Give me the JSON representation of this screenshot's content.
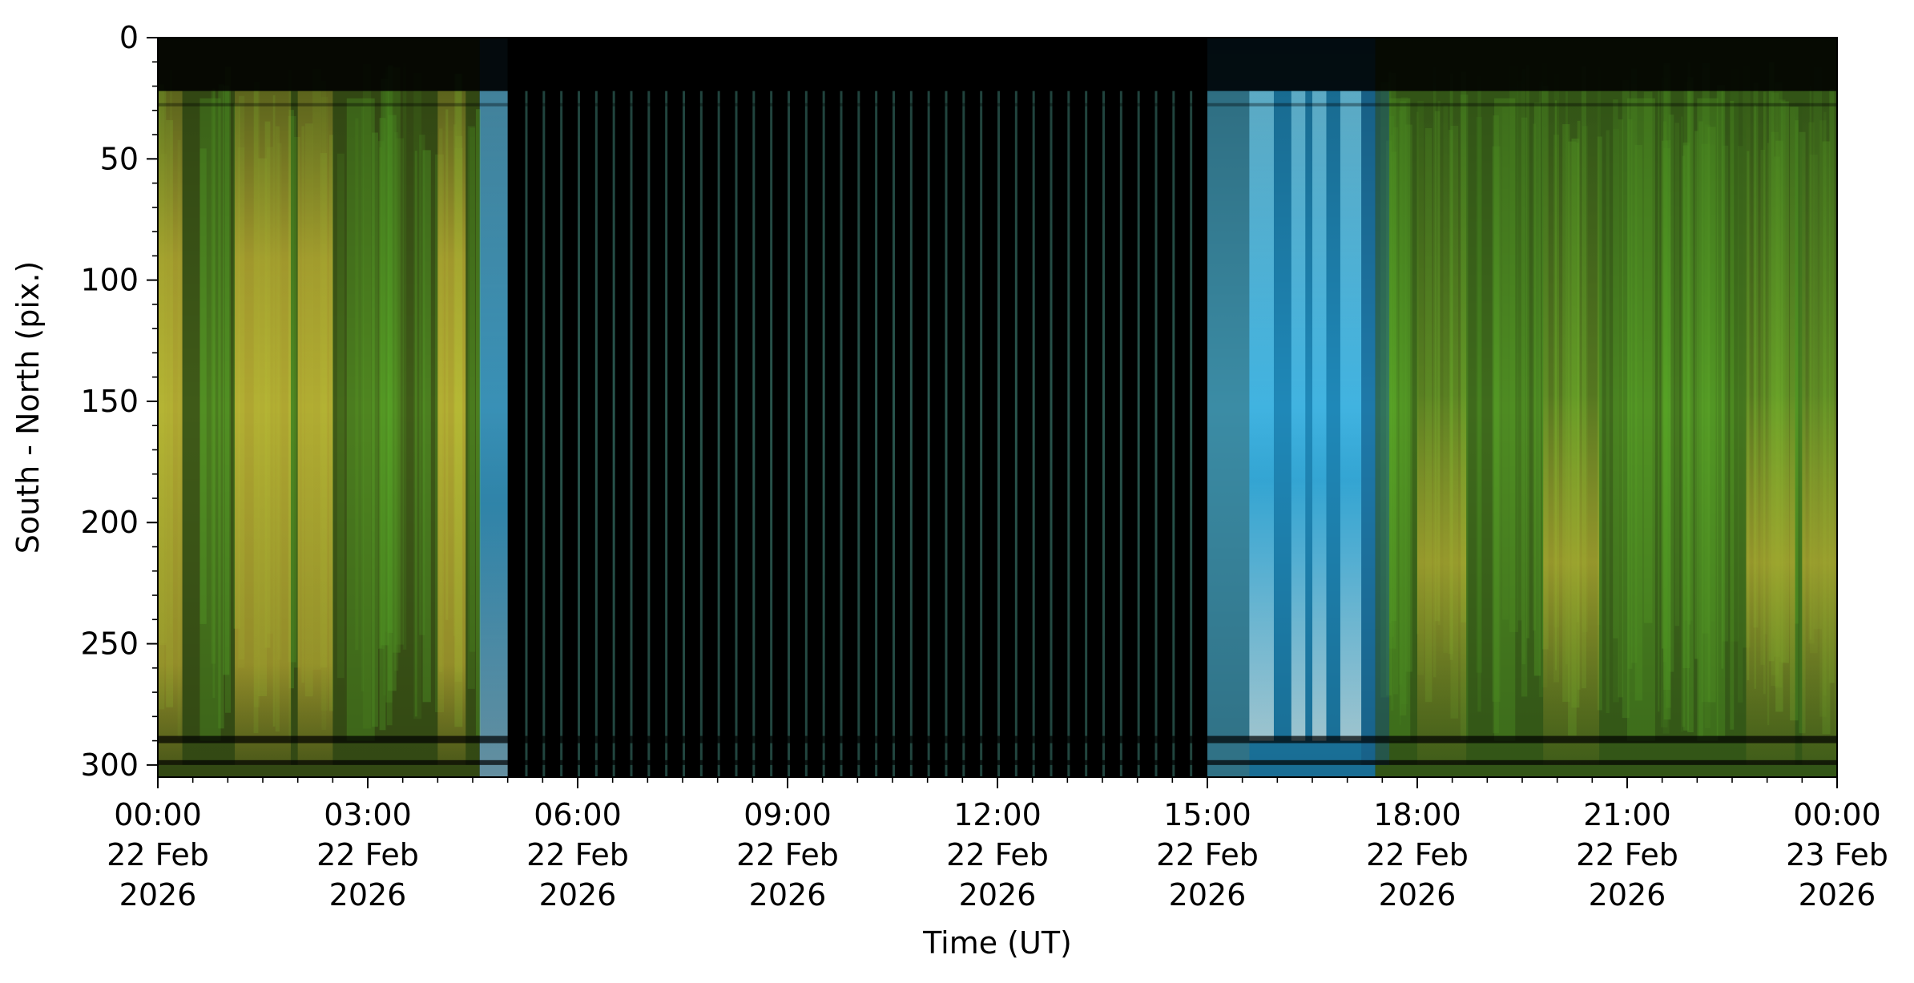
{
  "chart_data": {
    "type": "heatmap",
    "title": "",
    "xlabel": "Time (UT)",
    "ylabel": "South - North (pix.)",
    "y_inverted": true,
    "ylim": [
      0,
      305
    ],
    "y_ticks": [
      0,
      50,
      100,
      150,
      200,
      250,
      300
    ],
    "y_tick_labels": [
      "0",
      "50",
      "100",
      "150",
      "200",
      "250",
      "300"
    ],
    "xlim_hours": [
      0,
      24
    ],
    "x_ticks_hours": [
      0,
      3,
      6,
      9,
      12,
      15,
      18,
      21,
      24
    ],
    "x_tick_labels": [
      [
        "00:00",
        "22 Feb",
        "2026"
      ],
      [
        "03:00",
        "22 Feb",
        "2026"
      ],
      [
        "06:00",
        "22 Feb",
        "2026"
      ],
      [
        "09:00",
        "22 Feb",
        "2026"
      ],
      [
        "12:00",
        "22 Feb",
        "2026"
      ],
      [
        "15:00",
        "22 Feb",
        "2026"
      ],
      [
        "18:00",
        "22 Feb",
        "2026"
      ],
      [
        "21:00",
        "22 Feb",
        "2026"
      ],
      [
        "00:00",
        "23 Feb",
        "2026"
      ]
    ],
    "segments": [
      {
        "start_hour": 0.0,
        "end_hour": 4.6,
        "color": "#3f5a18"
      },
      {
        "start_hour": 4.6,
        "end_hour": 5.0,
        "color": "#2a6a8a"
      },
      {
        "start_hour": 5.0,
        "end_hour": 15.0,
        "color": "#000000"
      },
      {
        "start_hour": 15.0,
        "end_hour": 17.4,
        "color": "#1f88b8"
      },
      {
        "start_hour": 17.4,
        "end_hour": 24.0,
        "color": "#3f6a1c"
      }
    ],
    "yellow_bands_hours": [
      [
        0.0,
        0.35
      ],
      [
        1.1,
        1.9
      ],
      [
        2.0,
        2.5
      ],
      [
        4.0,
        4.4
      ],
      [
        18.0,
        18.7
      ],
      [
        19.8,
        20.6
      ],
      [
        22.7,
        23.4
      ],
      [
        23.5,
        24.0
      ]
    ],
    "green_bands_hours": [
      [
        0.6,
        0.9
      ],
      [
        2.7,
        3.1
      ],
      [
        17.6,
        17.9
      ],
      [
        19.1,
        19.4
      ],
      [
        21.0,
        21.4
      ],
      [
        22.0,
        22.3
      ]
    ],
    "dark_gap_stripes_hours": [
      5.25,
      5.5,
      5.75,
      6.0,
      6.25,
      6.5,
      6.75,
      7.0,
      7.25,
      7.5,
      7.75,
      8.0,
      8.25,
      8.5,
      8.75,
      9.0,
      9.25,
      9.5,
      9.75,
      10.0,
      10.25,
      10.5,
      10.75,
      11.0,
      11.25,
      11.5,
      11.75,
      12.0,
      12.25,
      12.5,
      12.75,
      13.0,
      13.25,
      13.5,
      13.75,
      14.0,
      14.25,
      14.5,
      14.75
    ],
    "bright_blue_bands_hours": [
      [
        15.6,
        15.95
      ],
      [
        16.2,
        16.4
      ],
      [
        16.5,
        16.7
      ],
      [
        16.9,
        17.2
      ]
    ],
    "dark_rows_pix": [
      [
        0,
        22
      ],
      [
        288,
        291
      ],
      [
        298,
        300
      ]
    ],
    "colors": {
      "green": "#5aa628",
      "yellow": "#c8b42c",
      "cyan": "#50c8e8",
      "stripe": "#4a9a8c"
    }
  }
}
